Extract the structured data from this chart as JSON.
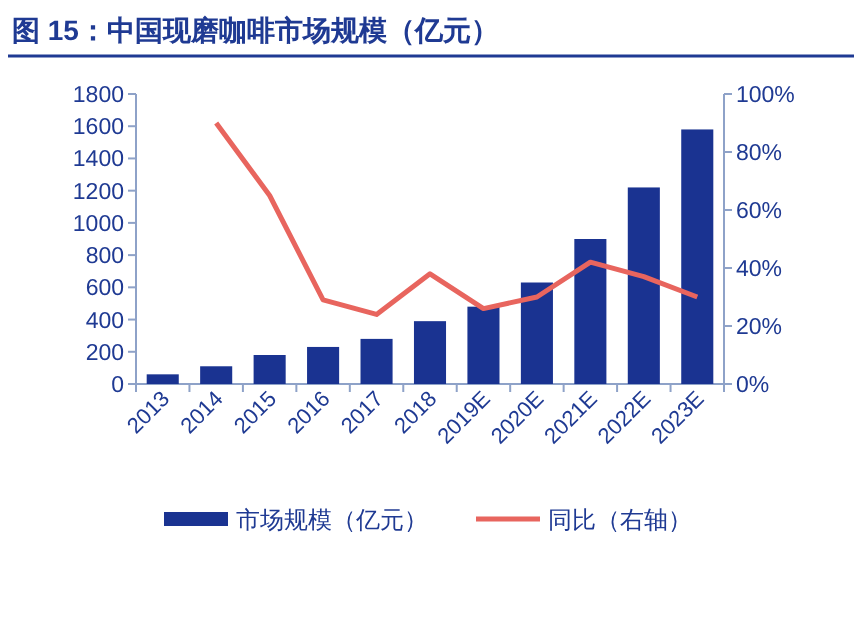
{
  "chart_data": {
    "type": "bar",
    "title": "图 15：中国现磨咖啡市场规模（亿元）",
    "categories": [
      "2013",
      "2014",
      "2015",
      "2016",
      "2017",
      "2018",
      "2019E",
      "2020E",
      "2021E",
      "2022E",
      "2023E"
    ],
    "series": [
      {
        "name": "市场规模（亿元）",
        "color": "#1a3391",
        "values": [
          60,
          110,
          180,
          230,
          280,
          390,
          480,
          630,
          900,
          1220,
          1580
        ]
      },
      {
        "name": "同比（右轴）",
        "type": "line",
        "axis": "y2",
        "color": "#e8655e",
        "values": [
          null,
          90,
          65,
          29,
          24,
          38,
          26,
          30,
          42,
          37,
          30
        ]
      }
    ],
    "ylim": [
      0,
      1800
    ],
    "yticks": [
      0,
      200,
      400,
      600,
      800,
      1000,
      1200,
      1400,
      1600,
      1800
    ],
    "y2lim": [
      0,
      100
    ],
    "y2ticks": [
      {
        "value": 0,
        "label": "0%"
      },
      {
        "value": 20,
        "label": "20%"
      },
      {
        "value": 40,
        "label": "40%"
      },
      {
        "value": 60,
        "label": "60%"
      },
      {
        "value": 80,
        "label": "80%"
      },
      {
        "value": 100,
        "label": "100%"
      }
    ],
    "grid": false,
    "legend": "bottom"
  }
}
